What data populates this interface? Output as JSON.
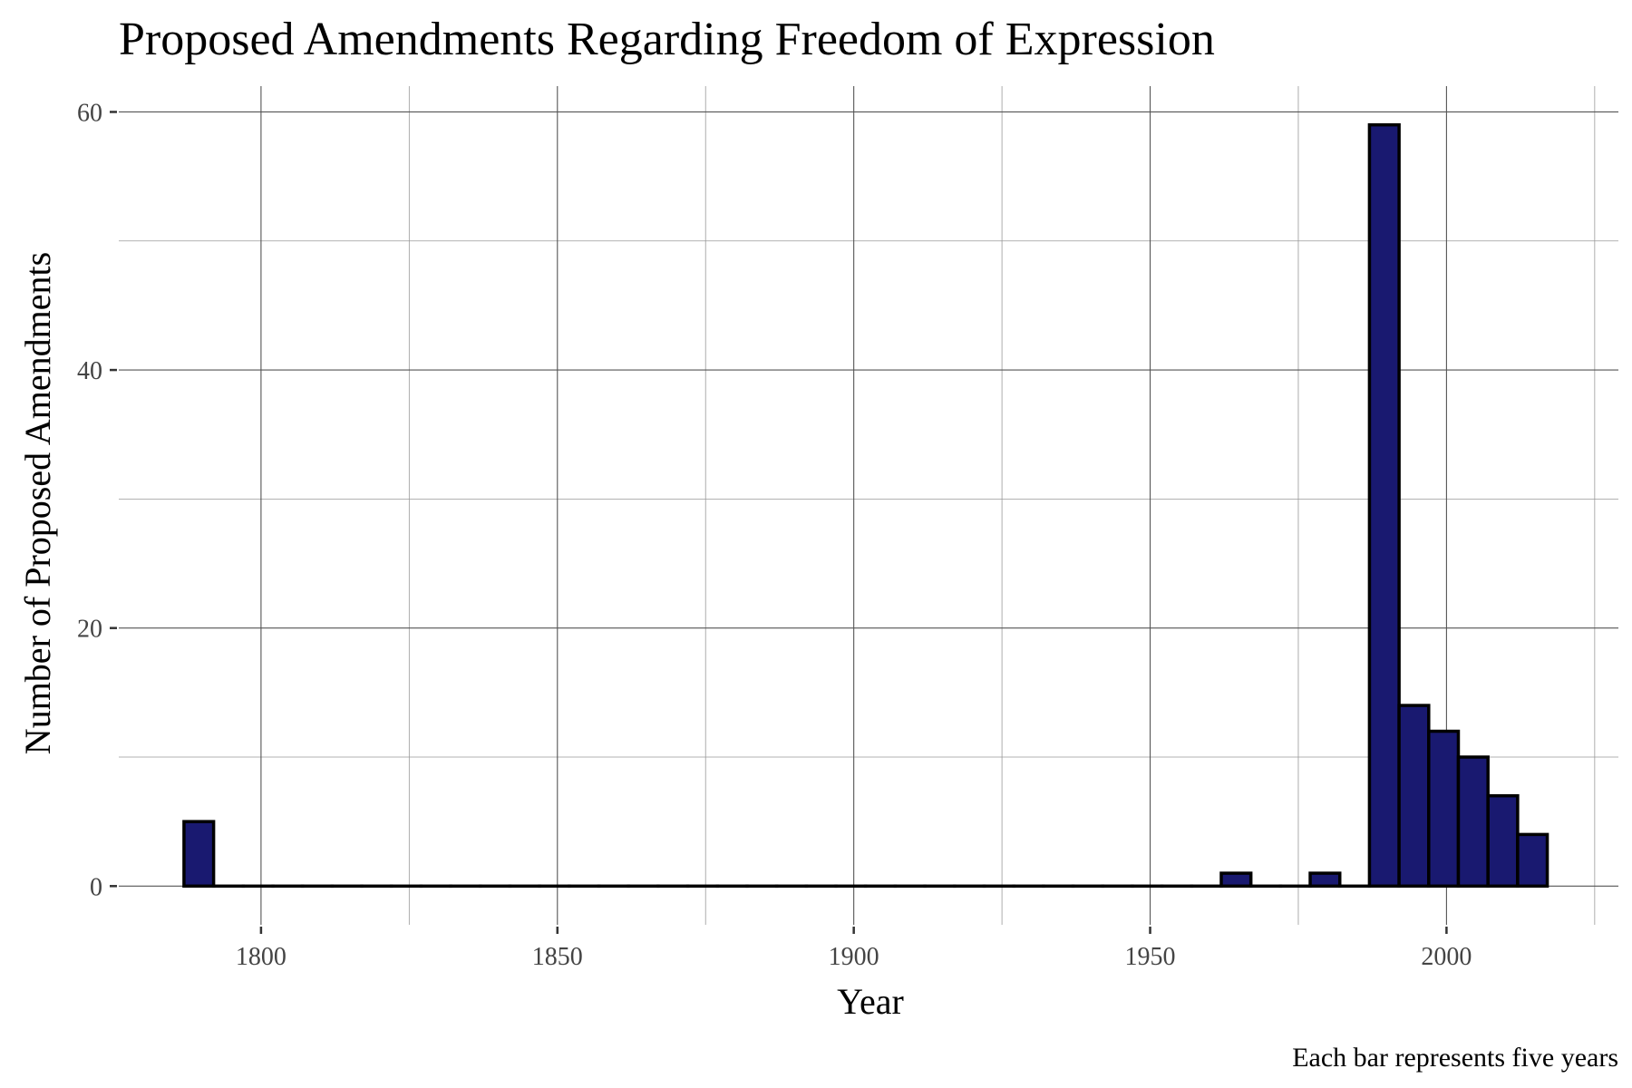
{
  "chart_data": {
    "type": "bar",
    "title": "Proposed Amendments Regarding Freedom of Expression",
    "xlabel": "Year",
    "ylabel": "Number of Proposed Amendments",
    "caption": "Each bar represents five years",
    "bin_width": 5,
    "bin_starts": [
      1787,
      1792,
      1797,
      1802,
      1807,
      1812,
      1817,
      1822,
      1827,
      1832,
      1837,
      1842,
      1847,
      1852,
      1857,
      1862,
      1867,
      1872,
      1877,
      1882,
      1887,
      1892,
      1897,
      1902,
      1907,
      1912,
      1917,
      1922,
      1927,
      1932,
      1937,
      1942,
      1947,
      1952,
      1957,
      1962,
      1967,
      1972,
      1977,
      1982,
      1987,
      1992,
      1997,
      2002,
      2007,
      2012
    ],
    "values": [
      5,
      0,
      0,
      0,
      0,
      0,
      0,
      0,
      0,
      0,
      0,
      0,
      0,
      0,
      0,
      0,
      0,
      0,
      0,
      0,
      0,
      0,
      0,
      0,
      0,
      0,
      0,
      0,
      0,
      0,
      0,
      0,
      0,
      0,
      0,
      1,
      0,
      0,
      1,
      0,
      59,
      14,
      12,
      10,
      7,
      4
    ],
    "xlim": [
      1776,
      2029
    ],
    "ylim": [
      -3,
      62
    ],
    "x_ticks": [
      1800,
      1850,
      1900,
      1950,
      2000
    ],
    "x_tick_labels": [
      "1800",
      "1850",
      "1900",
      "1950",
      "2000"
    ],
    "y_ticks": [
      0,
      20,
      40,
      60
    ],
    "y_tick_labels": [
      "0",
      "20",
      "40",
      "60"
    ],
    "grid": true,
    "legend": "none",
    "colors": {
      "bar_fill": "#191970",
      "bar_stroke": "#000000",
      "grid_major": "#555555",
      "grid_minor": "#999999"
    }
  }
}
